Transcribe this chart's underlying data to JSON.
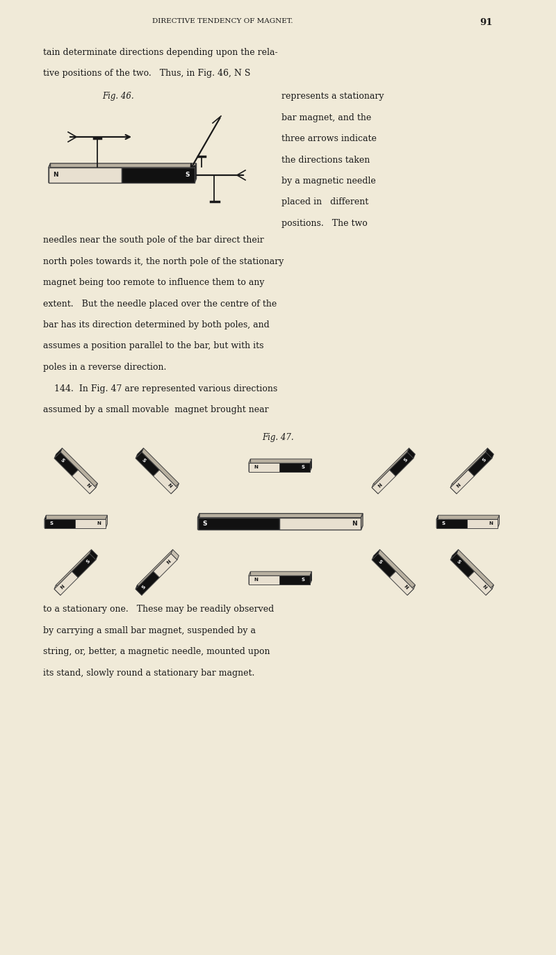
{
  "bg_color": "#f0ead8",
  "text_color": "#1a1a1a",
  "page_width": 8.0,
  "page_height": 13.74,
  "header_text": "DIRECTIVE TENDENCY OF MAGNET.",
  "header_page": "91",
  "fig46_caption": "Fig. 46.",
  "fig47_caption": "Fig. 47.",
  "body_text_1a": "tain determinate directions depending upon the rela-",
  "body_text_1b": "tive positions of the two.   Thus, in Fig. 46, N S",
  "fig46_right": [
    "represents a stationary",
    "bar magnet, and the",
    "three arrows indicate",
    "the directions taken",
    "by a magnetic needle",
    "placed in   different",
    "positions.   The two"
  ],
  "body_text_2": [
    "needles near the south pole of the bar direct their",
    "north poles towards it, the north pole of the stationary",
    "magnet being too remote to influence them to any",
    "extent.   But the needle placed over the centre of the",
    "bar has its direction determined by both poles, and",
    "assumes a position parallel to the bar, but with its",
    "poles in a reverse direction."
  ],
  "body_text_3a": "    144.  In Fig. 47 are represented various directions",
  "body_text_3b": "assumed by a small movable  magnet brought near",
  "body_text_4": [
    "to a stationary one.   These may be readily observed",
    "by carrying a small bar magnet, suspended by a",
    "string, or, better, a magnetic needle, mounted upon",
    "its stand, slowly round a stationary bar magnet."
  ]
}
